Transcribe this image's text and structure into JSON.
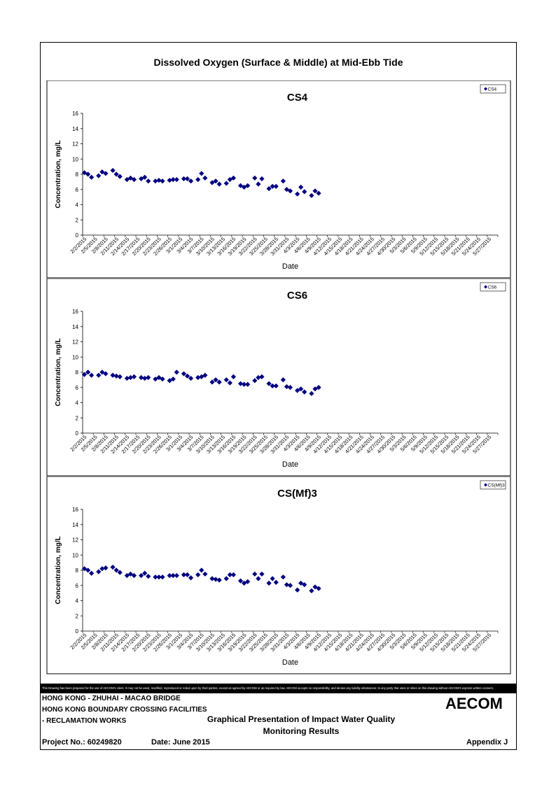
{
  "page_title": "Dissolved Oxygen (Surface & Middle) at Mid-Ebb Tide",
  "chart_data": [
    {
      "type": "scatter",
      "title": "CS4",
      "xlabel": "Date",
      "ylabel": "Concentration, mg/L",
      "ylim": [
        0,
        16
      ],
      "yticks": [
        "0",
        "2",
        "4",
        "6",
        "8",
        "10",
        "12",
        "14",
        "16"
      ],
      "grid": false,
      "legend": "top-right",
      "categories": [
        "2/2/2015",
        "2/5/2015",
        "2/8/2015",
        "2/11/2015",
        "2/14/2015",
        "2/17/2015",
        "2/20/2015",
        "2/23/2015",
        "2/26/2015",
        "3/1/2015",
        "3/4/2015",
        "3/7/2015",
        "3/10/2015",
        "3/13/2015",
        "3/16/2015",
        "3/19/2015",
        "3/22/2015",
        "3/25/2015",
        "3/28/2015",
        "3/31/2015",
        "4/3/2015",
        "4/6/2015",
        "4/9/2015",
        "4/12/2015",
        "4/15/2015",
        "4/18/2015",
        "4/21/2015",
        "4/24/2015",
        "4/27/2015",
        "4/30/2015",
        "5/3/2015",
        "5/6/2015",
        "5/9/2015",
        "5/12/2015",
        "5/15/2015",
        "5/18/2015",
        "5/21/2015",
        "5/24/2015",
        "5/27/2015"
      ],
      "series": [
        {
          "name": "CS4",
          "color": "#000080",
          "points": [
            [
              0,
              8.2
            ],
            [
              1,
              8.0
            ],
            [
              2,
              7.6
            ],
            [
              4,
              7.8
            ],
            [
              5,
              8.3
            ],
            [
              6,
              8.1
            ],
            [
              8,
              8.5
            ],
            [
              9,
              8.0
            ],
            [
              10,
              7.7
            ],
            [
              12,
              7.3
            ],
            [
              13,
              7.5
            ],
            [
              14,
              7.3
            ],
            [
              16,
              7.4
            ],
            [
              17,
              7.6
            ],
            [
              18,
              7.1
            ],
            [
              20,
              7.1
            ],
            [
              21,
              7.2
            ],
            [
              22,
              7.1
            ],
            [
              24,
              7.2
            ],
            [
              25,
              7.3
            ],
            [
              26,
              7.3
            ],
            [
              28,
              7.4
            ],
            [
              29,
              7.4
            ],
            [
              30,
              7.1
            ],
            [
              32,
              7.3
            ],
            [
              33,
              8.1
            ],
            [
              34,
              7.5
            ],
            [
              36,
              6.9
            ],
            [
              37,
              7.1
            ],
            [
              38,
              6.7
            ],
            [
              40,
              6.8
            ],
            [
              41,
              7.3
            ],
            [
              42,
              7.5
            ],
            [
              44,
              6.5
            ],
            [
              45,
              6.3
            ],
            [
              46,
              6.5
            ],
            [
              48,
              7.5
            ],
            [
              49,
              6.7
            ],
            [
              50,
              7.4
            ],
            [
              52,
              6.1
            ],
            [
              53,
              6.4
            ],
            [
              54,
              6.4
            ],
            [
              56,
              7.1
            ],
            [
              57,
              6.0
            ],
            [
              58,
              5.8
            ],
            [
              60,
              5.4
            ],
            [
              61,
              6.3
            ],
            [
              62,
              5.7
            ],
            [
              64,
              5.2
            ],
            [
              65,
              5.8
            ],
            [
              66,
              5.5
            ]
          ]
        }
      ]
    },
    {
      "type": "scatter",
      "title": "CS6",
      "xlabel": "Date",
      "ylabel": "Concentration, mg/L",
      "ylim": [
        0,
        16
      ],
      "yticks": [
        "0",
        "2",
        "4",
        "6",
        "8",
        "10",
        "12",
        "14",
        "16"
      ],
      "grid": false,
      "legend": "top-right",
      "categories": [
        "2/2/2015",
        "2/5/2015",
        "2/8/2015",
        "2/11/2015",
        "2/14/2015",
        "2/17/2015",
        "2/20/2015",
        "2/23/2015",
        "2/26/2015",
        "3/1/2015",
        "3/4/2015",
        "3/7/2015",
        "3/10/2015",
        "3/13/2015",
        "3/16/2015",
        "3/19/2015",
        "3/22/2015",
        "3/25/2015",
        "3/28/2015",
        "3/31/2015",
        "4/3/2015",
        "4/6/2015",
        "4/9/2015",
        "4/12/2015",
        "4/15/2015",
        "4/18/2015",
        "4/21/2015",
        "4/24/2015",
        "4/27/2015",
        "4/30/2015",
        "5/3/2015",
        "5/6/2015",
        "5/9/2015",
        "5/12/2015",
        "5/15/2015",
        "5/18/2015",
        "5/21/2015",
        "5/24/2015",
        "5/27/2015"
      ],
      "series": [
        {
          "name": "CS6",
          "color": "#000080",
          "points": [
            [
              0,
              7.7
            ],
            [
              1,
              8.0
            ],
            [
              2,
              7.6
            ],
            [
              4,
              7.6
            ],
            [
              5,
              8.0
            ],
            [
              6,
              7.8
            ],
            [
              8,
              7.6
            ],
            [
              9,
              7.5
            ],
            [
              10,
              7.4
            ],
            [
              12,
              7.2
            ],
            [
              13,
              7.3
            ],
            [
              14,
              7.4
            ],
            [
              16,
              7.3
            ],
            [
              17,
              7.2
            ],
            [
              18,
              7.3
            ],
            [
              20,
              7.1
            ],
            [
              21,
              7.3
            ],
            [
              22,
              7.1
            ],
            [
              24,
              6.9
            ],
            [
              25,
              7.1
            ],
            [
              26,
              8.0
            ],
            [
              28,
              7.8
            ],
            [
              29,
              7.5
            ],
            [
              30,
              7.2
            ],
            [
              32,
              7.3
            ],
            [
              33,
              7.4
            ],
            [
              34,
              7.6
            ],
            [
              36,
              6.7
            ],
            [
              37,
              7.0
            ],
            [
              38,
              6.7
            ],
            [
              40,
              7.0
            ],
            [
              41,
              6.6
            ],
            [
              42,
              7.4
            ],
            [
              44,
              6.5
            ],
            [
              45,
              6.4
            ],
            [
              46,
              6.4
            ],
            [
              48,
              6.9
            ],
            [
              49,
              7.3
            ],
            [
              50,
              7.4
            ],
            [
              52,
              6.5
            ],
            [
              53,
              6.2
            ],
            [
              54,
              6.2
            ],
            [
              56,
              7.0
            ],
            [
              57,
              6.1
            ],
            [
              58,
              6.0
            ],
            [
              60,
              5.6
            ],
            [
              61,
              5.8
            ],
            [
              62,
              5.4
            ],
            [
              64,
              5.2
            ],
            [
              65,
              5.8
            ],
            [
              66,
              6.0
            ]
          ]
        }
      ]
    },
    {
      "type": "scatter",
      "title": "CS(Mf)3",
      "xlabel": "Date",
      "ylabel": "Concentration, mg/L",
      "ylim": [
        0,
        16
      ],
      "yticks": [
        "0",
        "2",
        "4",
        "6",
        "8",
        "10",
        "12",
        "14",
        "16"
      ],
      "grid": false,
      "legend": "top-right",
      "categories": [
        "2/2/2015",
        "2/5/2015",
        "2/8/2015",
        "2/11/2015",
        "2/14/2015",
        "2/17/2015",
        "2/20/2015",
        "2/23/2015",
        "2/26/2015",
        "3/1/2015",
        "3/4/2015",
        "3/7/2015",
        "3/10/2015",
        "3/13/2015",
        "3/16/2015",
        "3/19/2015",
        "3/22/2015",
        "3/25/2015",
        "3/28/2015",
        "3/31/2015",
        "4/3/2015",
        "4/6/2015",
        "4/9/2015",
        "4/12/2015",
        "4/15/2015",
        "4/18/2015",
        "4/21/2015",
        "4/24/2015",
        "4/27/2015",
        "4/30/2015",
        "5/3/2015",
        "5/6/2015",
        "5/9/2015",
        "5/12/2015",
        "5/15/2015",
        "5/18/2015",
        "5/21/2015",
        "5/24/2015",
        "5/27/2015"
      ],
      "series": [
        {
          "name": "CS(Mf)3",
          "color": "#000080",
          "points": [
            [
              0,
              8.2
            ],
            [
              1,
              8.0
            ],
            [
              2,
              7.6
            ],
            [
              4,
              7.8
            ],
            [
              5,
              8.2
            ],
            [
              6,
              8.3
            ],
            [
              8,
              8.4
            ],
            [
              9,
              8.0
            ],
            [
              10,
              7.7
            ],
            [
              12,
              7.3
            ],
            [
              13,
              7.5
            ],
            [
              14,
              7.3
            ],
            [
              16,
              7.3
            ],
            [
              17,
              7.6
            ],
            [
              18,
              7.2
            ],
            [
              20,
              7.1
            ],
            [
              21,
              7.1
            ],
            [
              22,
              7.1
            ],
            [
              24,
              7.3
            ],
            [
              25,
              7.3
            ],
            [
              26,
              7.3
            ],
            [
              28,
              7.4
            ],
            [
              29,
              7.4
            ],
            [
              30,
              7.0
            ],
            [
              32,
              7.4
            ],
            [
              33,
              8.0
            ],
            [
              34,
              7.5
            ],
            [
              36,
              6.9
            ],
            [
              37,
              6.8
            ],
            [
              38,
              6.7
            ],
            [
              40,
              6.9
            ],
            [
              41,
              7.4
            ],
            [
              42,
              7.4
            ],
            [
              44,
              6.6
            ],
            [
              45,
              6.3
            ],
            [
              46,
              6.5
            ],
            [
              48,
              7.5
            ],
            [
              49,
              6.9
            ],
            [
              50,
              7.5
            ],
            [
              52,
              6.3
            ],
            [
              53,
              6.9
            ],
            [
              54,
              6.4
            ],
            [
              56,
              7.1
            ],
            [
              57,
              6.1
            ],
            [
              58,
              6.0
            ],
            [
              60,
              5.4
            ],
            [
              61,
              6.3
            ],
            [
              62,
              6.1
            ],
            [
              64,
              5.3
            ],
            [
              65,
              5.8
            ],
            [
              66,
              5.6
            ]
          ]
        }
      ]
    }
  ],
  "disclaimer": "This Drawing has been prepared for the use of AECOM's client. It may not be used, modified, reproduced or relied upon by third parties, except as agreed by AECOM or as required by law. AECOM accepts no responsibility, and denies any liability whatsoever, to any party that uses or relies on this drawing without AECOM's express written consent.",
  "footer": {
    "project_line1": "HONG KONG - ZHUHAI - MACAO BRIDGE",
    "project_line2": "HONG KONG BOUNDARY CROSSING FACILITIES",
    "project_line3": "- RECLAMATION WORKS",
    "doc_title_line1": "Graphical Presentation of Impact Water Quality",
    "doc_title_line2": "Monitoring Results",
    "project_no": "Project No.: 60249820",
    "date": "Date: June 2015",
    "appendix": "Appendix J",
    "logo": "AECOM"
  }
}
